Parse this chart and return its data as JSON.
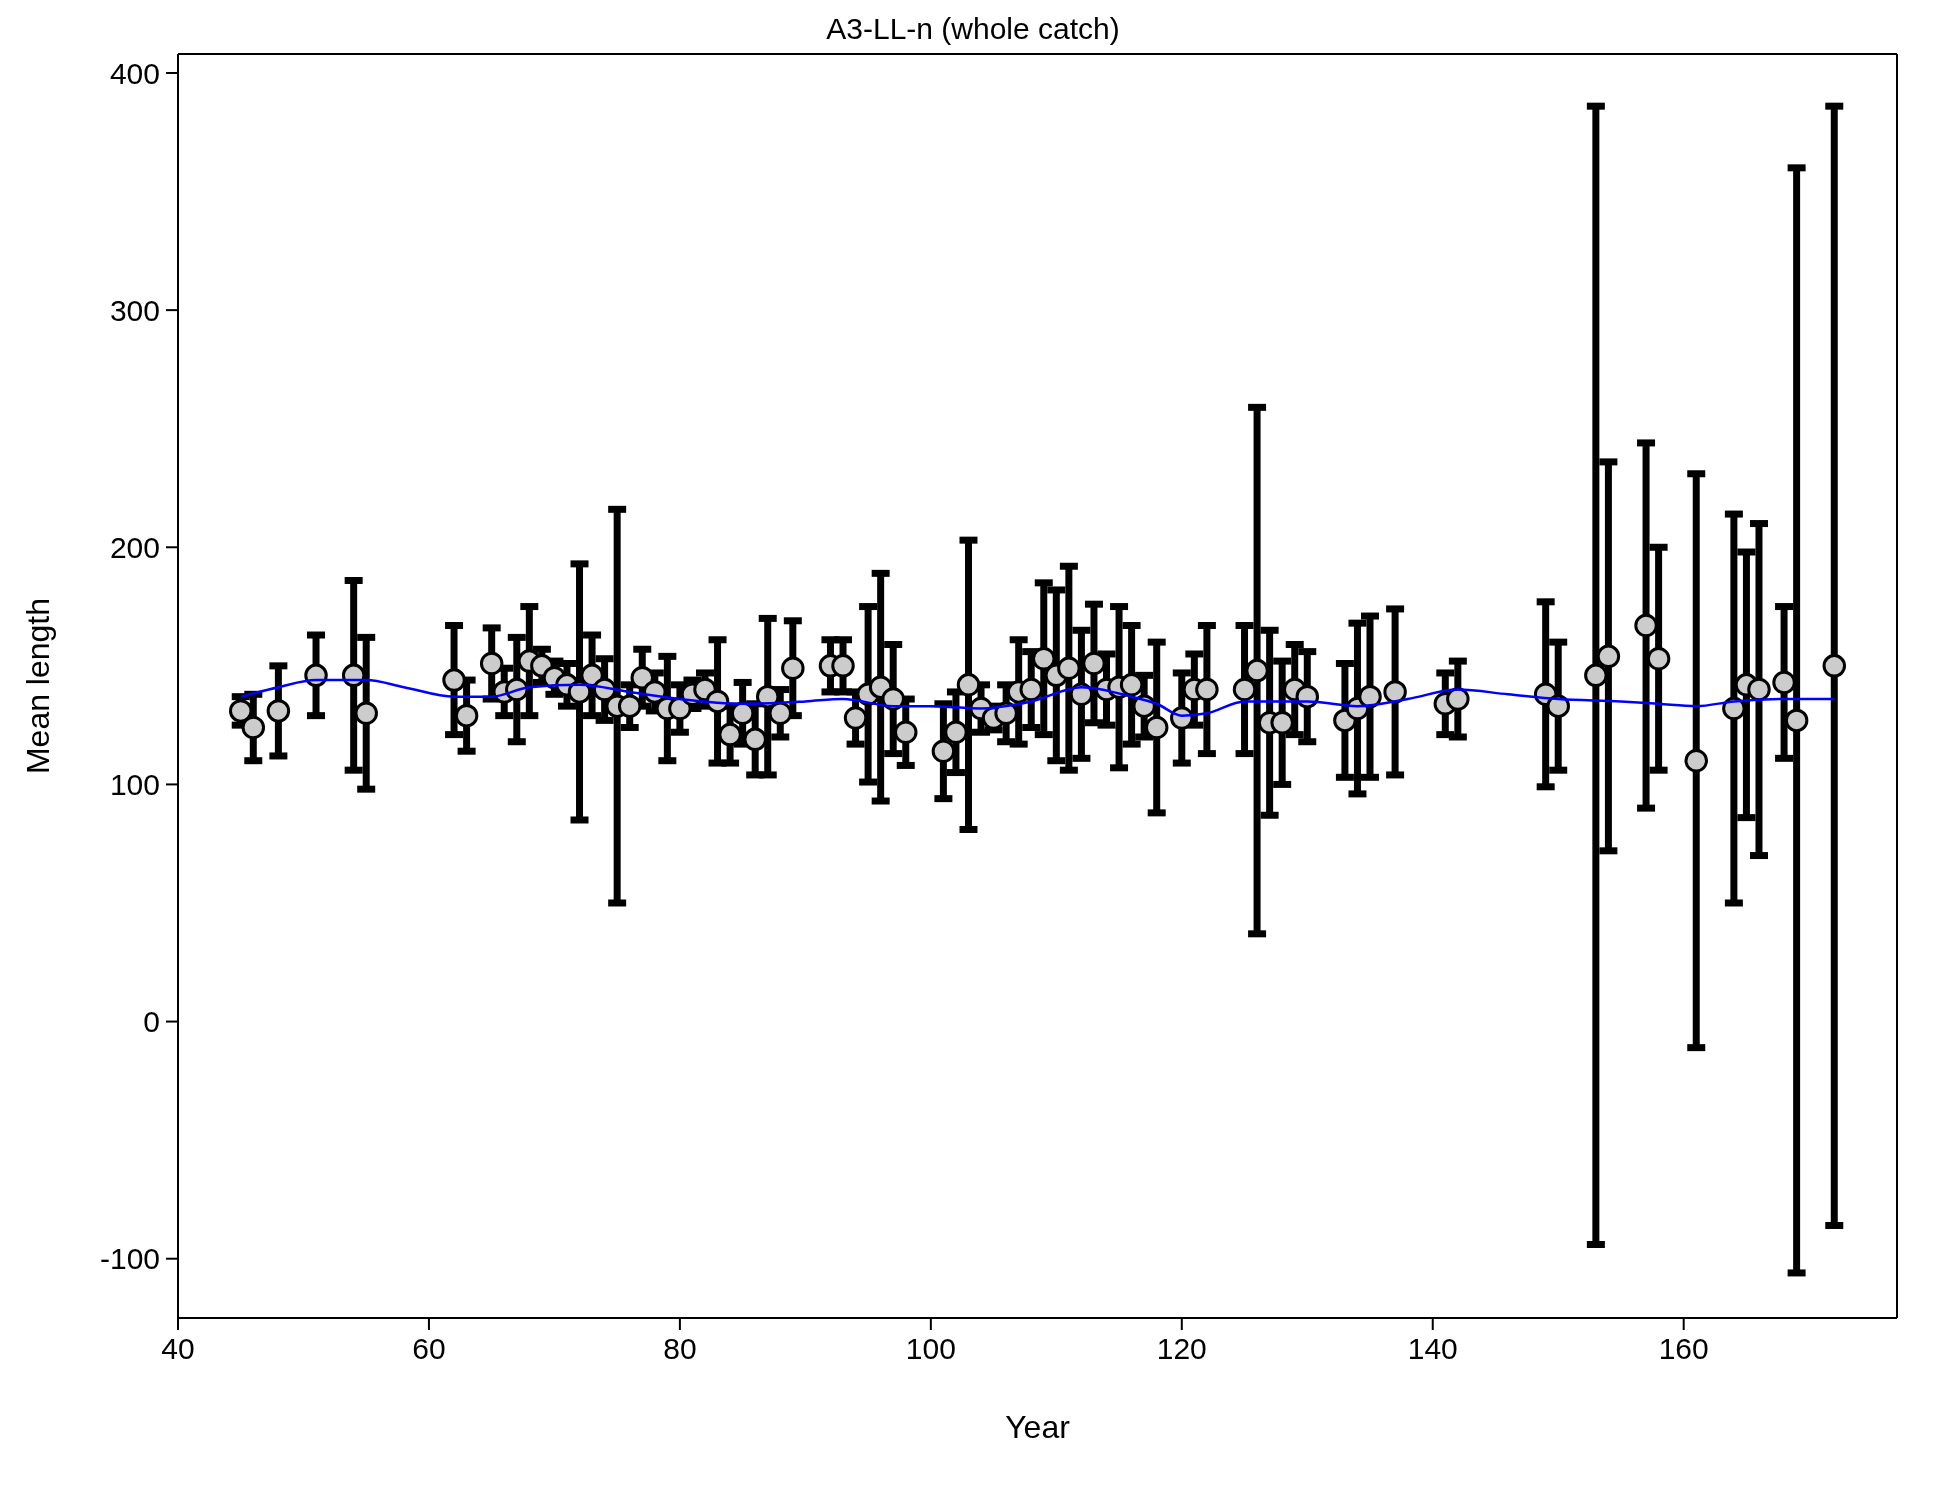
{
  "chart_data": {
    "type": "scatter",
    "title": "A3-LL-n (whole catch)",
    "xlabel": "Year",
    "ylabel": "Mean length",
    "xlim": [
      40,
      177
    ],
    "xticks": [
      40,
      60,
      80,
      100,
      120,
      140,
      160
    ],
    "ylim": [
      -125,
      408
    ],
    "yticks": [
      -100,
      0,
      100,
      200,
      300,
      400
    ],
    "grid": false,
    "series": [
      {
        "color": "#cccccc",
        "marker": "circle",
        "x": [
          45,
          46,
          48,
          51,
          54,
          55,
          62,
          63,
          65,
          66,
          67,
          68,
          69,
          70,
          71,
          72,
          73,
          74,
          75,
          76,
          77,
          78,
          79,
          80,
          81,
          82,
          83,
          84,
          85,
          86,
          87,
          88,
          89,
          92,
          93,
          94,
          95,
          96,
          97,
          98,
          101,
          102,
          103,
          104,
          105,
          106,
          107,
          108,
          109,
          110,
          111,
          112,
          113,
          114,
          115,
          116,
          117,
          118,
          120,
          121,
          122,
          125,
          126,
          127,
          128,
          129,
          130,
          133,
          134,
          135,
          137,
          141,
          142,
          149,
          150,
          153,
          154,
          157,
          158,
          161,
          164,
          165,
          166,
          168,
          169,
          172
        ],
        "values": [
          131,
          124,
          131,
          146,
          146,
          130,
          144,
          129,
          151,
          139,
          140,
          152,
          150,
          145,
          142,
          139,
          146,
          140,
          133,
          133,
          145,
          139,
          132,
          132,
          138,
          140,
          135,
          121,
          130,
          119,
          137,
          130,
          149,
          150,
          150,
          128,
          138,
          141,
          136,
          122,
          114,
          122,
          142,
          132,
          128,
          130,
          139,
          140,
          153,
          146,
          149,
          138,
          151,
          140,
          141,
          142,
          133,
          124,
          128,
          140,
          140,
          140,
          148,
          126,
          126,
          140,
          137,
          127,
          132,
          137,
          139,
          134,
          136,
          138,
          133,
          146,
          154,
          167,
          153,
          110,
          132,
          142,
          140,
          143,
          127,
          150
        ],
        "errors": [
          6,
          14,
          19,
          17,
          40,
          32,
          23,
          15,
          15,
          10,
          22,
          23,
          7,
          7,
          9,
          54,
          17,
          13,
          83,
          9,
          12,
          8,
          22,
          10,
          6,
          7,
          26,
          12,
          13,
          15,
          33,
          10,
          20,
          11,
          11,
          11,
          37,
          48,
          23,
          14,
          20,
          17,
          61,
          10,
          5,
          12,
          22,
          16,
          32,
          36,
          43,
          27,
          25,
          15,
          34,
          25,
          13,
          36,
          19,
          15,
          27,
          27,
          111,
          39,
          26,
          19,
          19,
          24,
          36,
          34,
          35,
          13,
          16,
          39,
          27,
          240,
          82,
          77,
          47,
          121,
          82,
          56,
          70,
          32,
          233,
          236
        ]
      },
      {
        "type": "line",
        "color": "#0000ff",
        "marker": "none",
        "line_style": "solid",
        "x": [
          45,
          48,
          51,
          55,
          58,
          62,
          65,
          68,
          72,
          76,
          80,
          85,
          90,
          93,
          97,
          100,
          104,
          108,
          112,
          116,
          118,
          120,
          122,
          125,
          130,
          134,
          138,
          142,
          146,
          150,
          155,
          158,
          161,
          164,
          168,
          172
        ],
        "values": [
          137,
          141,
          144,
          144,
          141,
          137,
          137,
          141,
          142,
          139,
          136,
          134,
          135,
          136,
          133,
          133,
          132,
          135,
          141,
          137,
          134,
          129,
          130,
          135,
          135,
          133,
          136,
          140,
          138,
          136,
          135,
          134,
          133,
          135,
          136,
          136
        ]
      }
    ]
  }
}
